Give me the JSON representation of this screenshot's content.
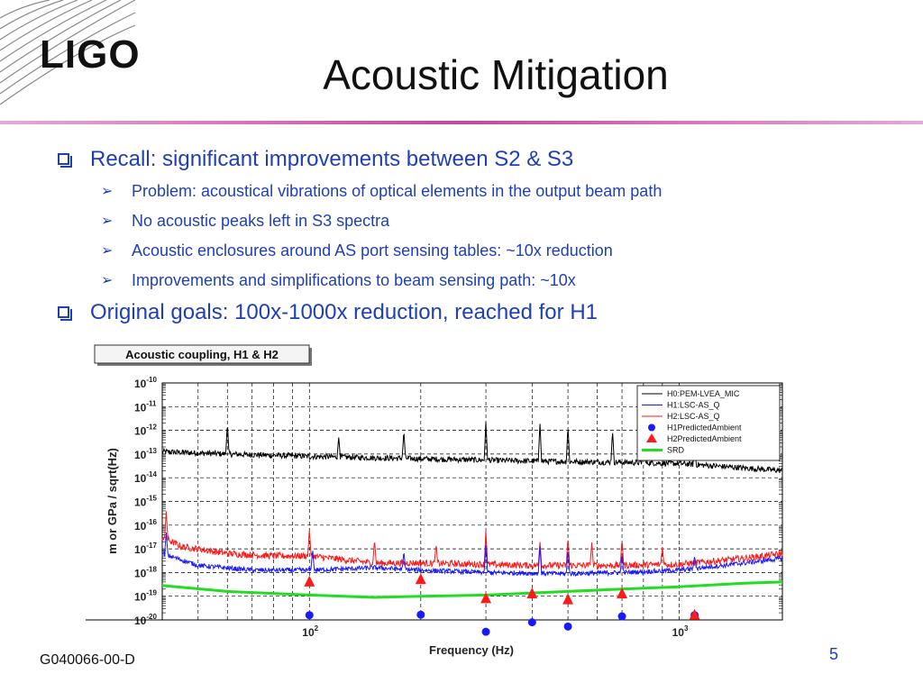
{
  "slide": {
    "logo": "LIGO",
    "title": "Acoustic Mitigation",
    "bullets": [
      {
        "level": 1,
        "text": "Recall: significant improvements between S2 & S3"
      },
      {
        "level": 2,
        "text": "Problem: acoustical vibrations of optical elements in the output beam path"
      },
      {
        "level": 2,
        "text": "No acoustic peaks left in S3 spectra"
      },
      {
        "level": 2,
        "text": "Acoustic enclosures around AS port sensing tables: ~10x reduction"
      },
      {
        "level": 2,
        "text": "Improvements and simplifications to beam sensing path: ~10x"
      },
      {
        "level": 1,
        "text": "Original goals: 100x-1000x reduction, reached for H1"
      }
    ],
    "footer": "G040066-00-D",
    "page_number": "5"
  },
  "colors": {
    "accent": "#1f3fb7",
    "rule": "#c7479d",
    "H0": "#000000",
    "H1": "#1a1aff",
    "H2": "#ff1a1a",
    "SRD": "#22dd22"
  },
  "chart_data": {
    "type": "line",
    "caption": "Acoustic coupling, H1 & H2",
    "xlabel": "Frequency (Hz)",
    "ylabel": "m or GPa / sqrt(Hz)",
    "x_scale": "log",
    "y_scale": "log",
    "xlim": [
      40,
      1900
    ],
    "ylim_exp": [
      -20,
      -10
    ],
    "x_tick_labels": [
      {
        "base": "10",
        "exp": "2",
        "value": 100
      },
      {
        "base": "10",
        "exp": "3",
        "value": 1000
      }
    ],
    "y_tick_labels": [
      {
        "base": "10",
        "exp": "-10",
        "value_exp": -10
      },
      {
        "base": "10",
        "exp": "-11",
        "value_exp": -11
      },
      {
        "base": "10",
        "exp": "-12",
        "value_exp": -12
      },
      {
        "base": "10",
        "exp": "-13",
        "value_exp": -13
      },
      {
        "base": "10",
        "exp": "-14",
        "value_exp": -14
      },
      {
        "base": "10",
        "exp": "-15",
        "value_exp": -15
      },
      {
        "base": "10",
        "exp": "-16",
        "value_exp": -16
      },
      {
        "base": "10",
        "exp": "-17",
        "value_exp": -17
      },
      {
        "base": "10",
        "exp": "-18",
        "value_exp": -18
      },
      {
        "base": "10",
        "exp": "-19",
        "value_exp": -19
      },
      {
        "base": "10",
        "exp": "-20",
        "value_exp": -20
      }
    ],
    "grid": true,
    "legend_position": "top-right",
    "legend": [
      {
        "label": "H0:PEM-LVEA_MIC",
        "key": "H0",
        "marker": "line"
      },
      {
        "label": "H1:LSC-AS_Q",
        "key": "H1",
        "marker": "line"
      },
      {
        "label": "H2:LSC-AS_Q",
        "key": "H2",
        "marker": "line"
      },
      {
        "label": "H1PredictedAmbient",
        "key": "H1",
        "marker": "circle"
      },
      {
        "label": "H2PredictedAmbient",
        "key": "H2",
        "marker": "triangle"
      },
      {
        "label": "SRD",
        "key": "SRD",
        "marker": "thick-line"
      }
    ],
    "series": [
      {
        "name": "H0:PEM-LVEA_MIC",
        "key": "H0",
        "baseline": [
          [
            40,
            -12.9
          ],
          [
            60,
            -13.0
          ],
          [
            100,
            -13.1
          ],
          [
            200,
            -13.2
          ],
          [
            400,
            -13.3
          ],
          [
            700,
            -13.35
          ],
          [
            1000,
            -13.4
          ],
          [
            1900,
            -13.7
          ]
        ],
        "noise": 0.12,
        "peaks": [
          [
            60,
            -11.7
          ],
          [
            120,
            -12.3
          ],
          [
            180,
            -12.0
          ],
          [
            300,
            -11.6
          ],
          [
            420,
            -11.7
          ],
          [
            500,
            -11.8
          ],
          [
            660,
            -12.0
          ],
          [
            800,
            -12.2
          ],
          [
            1100,
            -12.6
          ]
        ]
      },
      {
        "name": "H2:LSC-AS_Q",
        "key": "H2",
        "baseline": [
          [
            40,
            -16.5
          ],
          [
            45,
            -16.9
          ],
          [
            60,
            -17.2
          ],
          [
            80,
            -17.3
          ],
          [
            100,
            -17.3
          ],
          [
            150,
            -17.6
          ],
          [
            200,
            -17.6
          ],
          [
            400,
            -17.7
          ],
          [
            700,
            -17.7
          ],
          [
            1000,
            -17.65
          ],
          [
            1500,
            -17.4
          ],
          [
            1900,
            -17.2
          ]
        ],
        "noise": 0.14,
        "peaks": [
          [
            41,
            -15.4
          ],
          [
            100,
            -16.2
          ],
          [
            150,
            -16.6
          ],
          [
            220,
            -16.8
          ],
          [
            300,
            -16.2
          ],
          [
            420,
            -16.7
          ],
          [
            500,
            -16.5
          ],
          [
            580,
            -16.7
          ],
          [
            700,
            -16.6
          ],
          [
            900,
            -16.9
          ]
        ]
      },
      {
        "name": "H1:LSC-AS_Q",
        "key": "H1",
        "baseline": [
          [
            40,
            -17.2
          ],
          [
            50,
            -17.7
          ],
          [
            70,
            -17.9
          ],
          [
            100,
            -17.9
          ],
          [
            150,
            -17.8
          ],
          [
            200,
            -17.9
          ],
          [
            300,
            -18.0
          ],
          [
            500,
            -18.05
          ],
          [
            700,
            -18.0
          ],
          [
            1000,
            -17.9
          ],
          [
            1500,
            -17.6
          ],
          [
            1900,
            -17.4
          ]
        ],
        "noise": 0.1,
        "peaks": [
          [
            41,
            -16.3
          ],
          [
            102,
            -17.0
          ],
          [
            180,
            -17.1
          ],
          [
            300,
            -16.8
          ],
          [
            420,
            -16.9
          ],
          [
            500,
            -17.0
          ],
          [
            700,
            -17.2
          ],
          [
            1100,
            -17.3
          ]
        ]
      },
      {
        "name": "SRD",
        "key": "SRD",
        "points": [
          [
            40,
            -18.55
          ],
          [
            60,
            -18.8
          ],
          [
            100,
            -18.95
          ],
          [
            150,
            -19.05
          ],
          [
            200,
            -19.0
          ],
          [
            300,
            -18.95
          ],
          [
            500,
            -18.8
          ],
          [
            700,
            -18.7
          ],
          [
            1000,
            -18.6
          ],
          [
            1500,
            -18.45
          ],
          [
            1900,
            -18.4
          ]
        ]
      },
      {
        "name": "H1PredictedAmbient",
        "key": "H1",
        "markers": [
          [
            100,
            -19.8
          ],
          [
            200,
            -19.78
          ],
          [
            300,
            -20.5
          ],
          [
            400,
            -20.1
          ],
          [
            500,
            -20.28
          ],
          [
            700,
            -19.85
          ],
          [
            1100,
            -19.8
          ]
        ]
      },
      {
        "name": "H2PredictedAmbient",
        "key": "H2",
        "markers": [
          [
            100,
            -18.4
          ],
          [
            200,
            -18.3
          ],
          [
            300,
            -19.1
          ],
          [
            400,
            -18.9
          ],
          [
            500,
            -19.15
          ],
          [
            700,
            -18.9
          ],
          [
            1100,
            -19.8
          ]
        ]
      }
    ]
  }
}
